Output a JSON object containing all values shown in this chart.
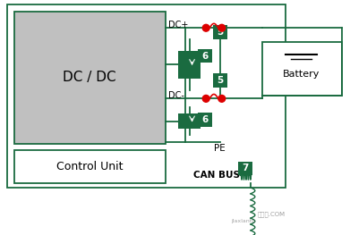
{
  "bg_color": "#ffffff",
  "dark_green": "#1a6b40",
  "gray_fill": "#c0c0c0",
  "red_color": "#dd0000",
  "title_dc_dc": "DC / DC",
  "title_control": "Control Unit",
  "title_battery": "Battery",
  "label_can": "CAN BUS",
  "label_pe": "PE",
  "label_dc_plus": "DC+",
  "label_dc_minus": "DC-"
}
